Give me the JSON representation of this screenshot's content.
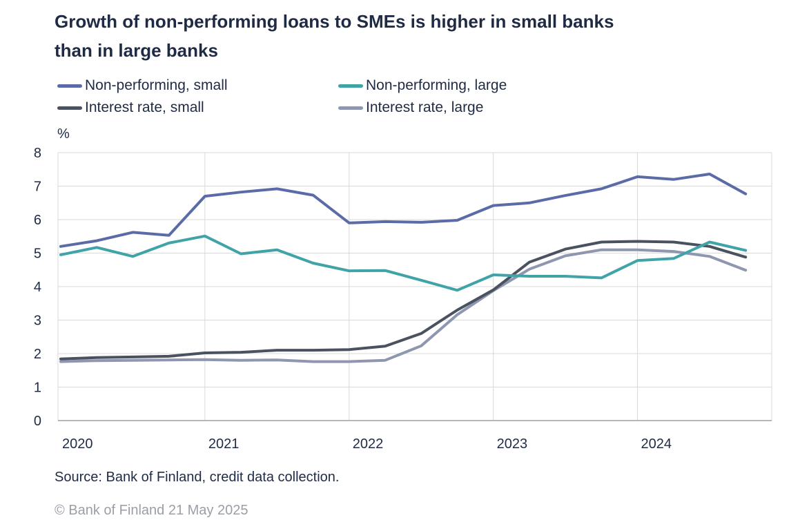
{
  "title_lines": [
    "Growth of non-performing loans to SMEs is higher in small banks",
    "than in large banks"
  ],
  "legend": [
    {
      "label": "Non-performing, small",
      "color": "#5b6ba8"
    },
    {
      "label": "Non-performing, large",
      "color": "#3fa3a8"
    },
    {
      "label": "Interest rate, small",
      "color": "#4a5260"
    },
    {
      "label": "Interest rate, large",
      "color": "#8e96b0"
    }
  ],
  "source": "Source: Bank of Finland, credit data collection.",
  "copyright": "© Bank of Finland 21 May 2025",
  "chart_data": {
    "type": "line",
    "ylabel": "%",
    "ylim": [
      0,
      8
    ],
    "y_ticks": [
      "0",
      "1",
      "2",
      "3",
      "4",
      "5",
      "6",
      "7",
      "8"
    ],
    "x_tick_labels": [
      "2020",
      "2021",
      "2022",
      "2023",
      "2024"
    ],
    "grid": true,
    "x": [
      "2019 Q4",
      "2020 Q1",
      "2020 Q2",
      "2020 Q3",
      "2020 Q4",
      "2021 Q1",
      "2021 Q2",
      "2021 Q3",
      "2021 Q4",
      "2022 Q1",
      "2022 Q2",
      "2022 Q3",
      "2022 Q4",
      "2023 Q1",
      "2023 Q2",
      "2023 Q3",
      "2023 Q4",
      "2024 Q1",
      "2024 Q2",
      "2024 Q3"
    ],
    "series": [
      {
        "name": "Non-performing, small",
        "color": "#5b6ba8",
        "values": [
          5.2,
          5.37,
          5.62,
          5.53,
          6.7,
          6.82,
          6.92,
          6.73,
          5.9,
          5.94,
          5.92,
          5.98,
          6.42,
          6.5,
          6.72,
          6.92,
          7.28,
          7.2,
          7.36,
          6.77
        ]
      },
      {
        "name": "Non-performing, large",
        "color": "#3fa3a8",
        "values": [
          4.95,
          5.17,
          4.9,
          5.3,
          5.51,
          4.98,
          5.1,
          4.7,
          4.47,
          4.48,
          4.19,
          3.89,
          4.35,
          4.31,
          4.31,
          4.26,
          4.78,
          4.84,
          5.33,
          5.08
        ]
      },
      {
        "name": "Interest rate, small",
        "color": "#4a5260",
        "values": [
          1.84,
          1.88,
          1.9,
          1.92,
          2.02,
          2.04,
          2.1,
          2.1,
          2.12,
          2.22,
          2.6,
          3.3,
          3.9,
          4.73,
          5.12,
          5.33,
          5.35,
          5.33,
          5.2,
          4.88
        ]
      },
      {
        "name": "Interest rate, large",
        "color": "#8e96b0",
        "values": [
          1.76,
          1.79,
          1.8,
          1.81,
          1.82,
          1.8,
          1.81,
          1.76,
          1.76,
          1.8,
          2.23,
          3.16,
          3.88,
          4.52,
          4.92,
          5.1,
          5.1,
          5.05,
          4.9,
          4.49
        ]
      }
    ]
  }
}
